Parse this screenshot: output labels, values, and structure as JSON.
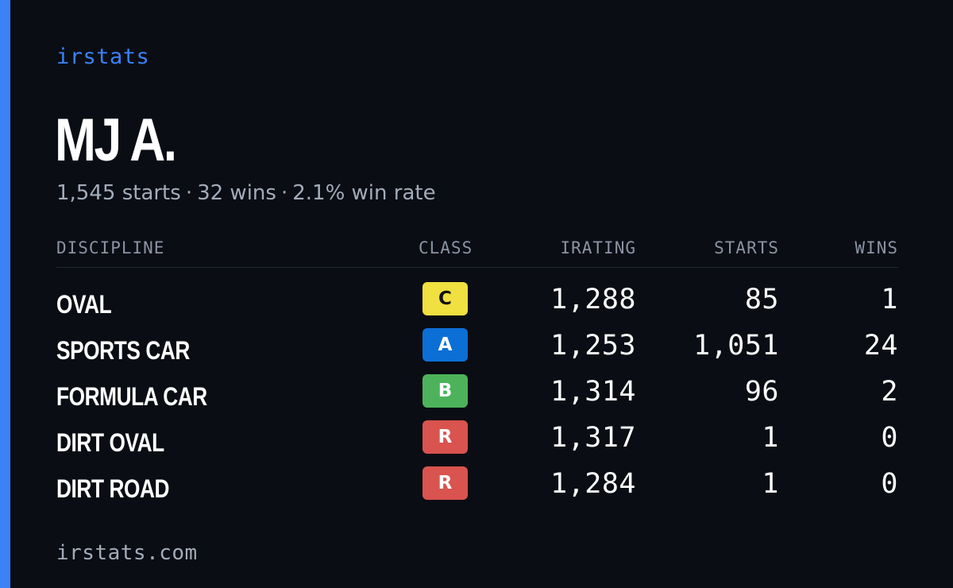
{
  "brand": {
    "title": "irstats"
  },
  "driver": {
    "name": "MJ A.",
    "starts_text": "1,545 starts",
    "wins_text": "32 wins",
    "win_rate_text": "2.1% win rate",
    "separator": "·"
  },
  "table": {
    "headers": {
      "discipline": "DISCIPLINE",
      "class": "CLASS",
      "irating": "IRATING",
      "starts": "STARTS",
      "wins": "WINS"
    },
    "rows": [
      {
        "discipline": "OVAL",
        "class": "C",
        "class_color": "#f0e040",
        "irating": "1,288",
        "starts": "85",
        "wins": "1"
      },
      {
        "discipline": "SPORTS CAR",
        "class": "A",
        "class_color": "#0c6fd6",
        "irating": "1,253",
        "starts": "1,051",
        "wins": "24"
      },
      {
        "discipline": "FORMULA CAR",
        "class": "B",
        "class_color": "#4cb35a",
        "irating": "1,314",
        "starts": "96",
        "wins": "2"
      },
      {
        "discipline": "DIRT OVAL",
        "class": "R",
        "class_color": "#d9534f",
        "irating": "1,317",
        "starts": "1",
        "wins": "0"
      },
      {
        "discipline": "DIRT ROAD",
        "class": "R",
        "class_color": "#d9534f",
        "irating": "1,284",
        "starts": "1",
        "wins": "0"
      }
    ]
  },
  "footer": {
    "url": "irstats.com"
  },
  "colors": {
    "accent": "#3b82f6",
    "background": "#0a0d14",
    "muted_text": "#a3acb9"
  }
}
